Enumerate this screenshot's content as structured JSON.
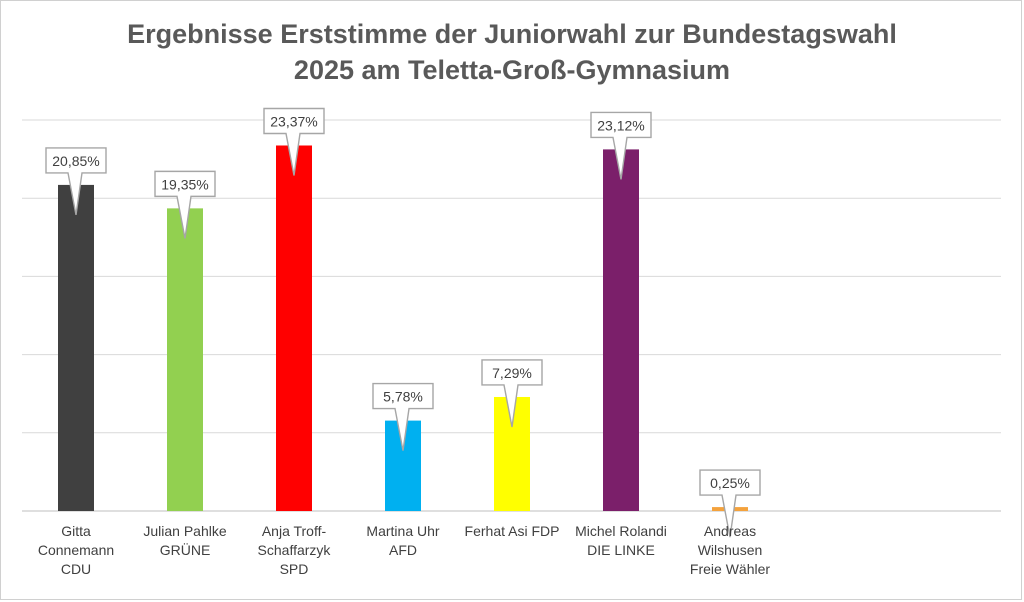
{
  "chart_data": {
    "type": "bar",
    "title": "Ergebnisse Erststimme der Juniorwahl zur Bundestagswahl\n2025 am Teletta-Groß-Gymnasium",
    "categories": [
      "Gitta\nConnemann\nCDU",
      "Julian Pahlke\nGRÜNE",
      "Anja Troff-\nSchaffarzyk\nSPD",
      "Martina Uhr\nAFD",
      "Ferhat Asi FDP",
      "Michel Rolandi\nDIE LINKE",
      "Andreas\nWilshusen\nFreie Wähler"
    ],
    "values": [
      20.85,
      19.35,
      23.37,
      5.78,
      7.29,
      23.12,
      0.25
    ],
    "data_labels": [
      "20,85%",
      "19,35%",
      "23,37%",
      "5,78%",
      "7,29%",
      "23,12%",
      "0,25%"
    ],
    "colors": [
      "#404040",
      "#92d050",
      "#ff0000",
      "#00b0f0",
      "#ffff00",
      "#7b1f6a",
      "#f4a23c"
    ],
    "ylim": [
      0,
      25
    ],
    "grid": true,
    "legend": "none"
  }
}
